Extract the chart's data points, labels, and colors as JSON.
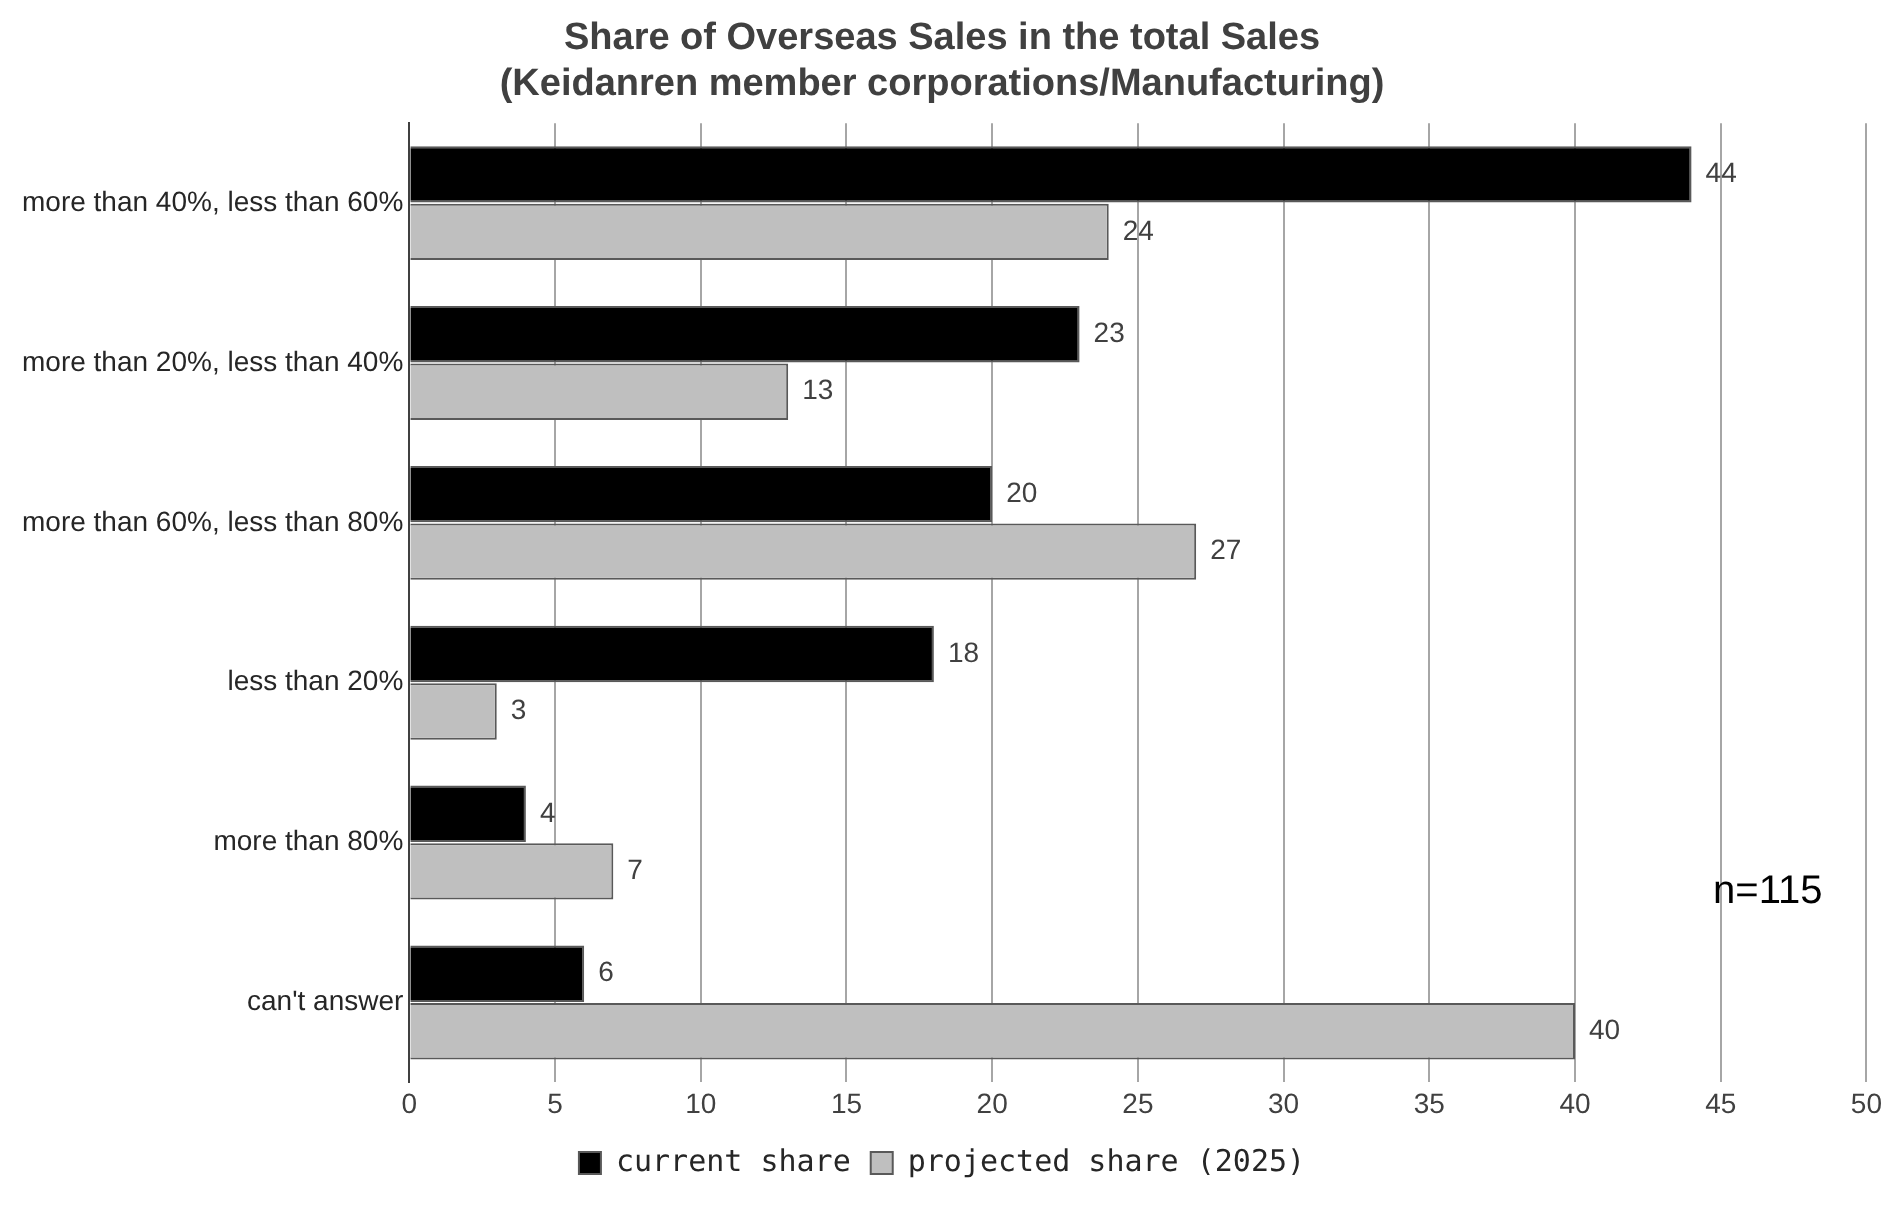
{
  "chart_data": {
    "type": "bar",
    "orientation": "horizontal",
    "title": "Share of Overseas Sales in the total Sales\n(Keidanren member corporations/Manufacturing)",
    "categories": [
      "more than 40%, less than 60%",
      "more than 20%, less than 40%",
      "more than 60%, less than 80%",
      "less than 20%",
      "more than 80%",
      "can't answer"
    ],
    "series": [
      {
        "name": "current share",
        "color": "#000000",
        "values": [
          44,
          23,
          20,
          18,
          4,
          6
        ]
      },
      {
        "name": "projected share (2025)",
        "color": "#bfbfbf",
        "values": [
          24,
          13,
          27,
          3,
          7,
          40
        ]
      }
    ],
    "xlim": [
      0,
      50
    ],
    "xticks": [
      0,
      5,
      10,
      15,
      20,
      25,
      30,
      35,
      40,
      45,
      50
    ],
    "grid": "x",
    "legend": "bottom",
    "data_labels": true,
    "annotations": [
      "n=115"
    ]
  }
}
